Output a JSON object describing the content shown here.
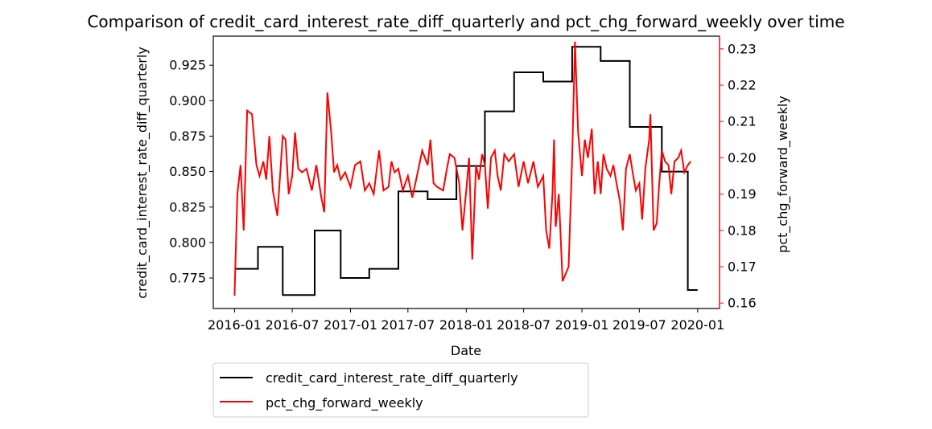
{
  "chart_data": {
    "type": "line",
    "title": "Comparison of credit_card_interest_rate_diff_quarterly and pct_chg_forward_weekly over time",
    "xlabel": "Date",
    "ylabel_left": "credit_card_interest_rate_diff_quarterly",
    "ylabel_right": "pct_chg_forward_weekly",
    "x_ticks": [
      "2016-01",
      "2016-07",
      "2017-01",
      "2017-07",
      "2018-01",
      "2018-07",
      "2019-01",
      "2019-07",
      "2020-01"
    ],
    "y_left_ticks": [
      0.775,
      0.8,
      0.825,
      0.85,
      0.875,
      0.9,
      0.925
    ],
    "y_right_ticks": [
      0.16,
      0.17,
      0.18,
      0.19,
      0.2,
      0.21,
      0.22,
      0.23
    ],
    "y_left_range": [
      0.7535,
      0.9455
    ],
    "y_right_range": [
      0.1585,
      0.2335
    ],
    "x_range": [
      "2015-10-26",
      "2020-03-10"
    ],
    "legend_position": "below",
    "grid": false,
    "colors": {
      "left_series": "#000000",
      "right_series": "#ff0000"
    },
    "series": [
      {
        "name": "credit_card_interest_rate_diff_quarterly",
        "axis": "left",
        "step": true,
        "points": [
          [
            "2016-01-01",
            0.7815
          ],
          [
            "2016-03-15",
            0.797
          ],
          [
            "2016-06-01",
            0.763
          ],
          [
            "2016-09-10",
            0.8085
          ],
          [
            "2016-12-01",
            0.775
          ],
          [
            "2017-03-01",
            0.7815
          ],
          [
            "2017-06-01",
            0.836
          ],
          [
            "2017-09-01",
            0.8305
          ],
          [
            "2017-12-01",
            0.854
          ],
          [
            "2018-03-01",
            0.8925
          ],
          [
            "2018-06-01",
            0.92
          ],
          [
            "2018-09-01",
            0.9135
          ],
          [
            "2018-12-01",
            0.938
          ],
          [
            "2019-03-01",
            0.928
          ],
          [
            "2019-06-01",
            0.8815
          ],
          [
            "2019-09-10",
            0.85
          ],
          [
            "2019-12-01",
            0.7665
          ],
          [
            "2020-01-01",
            0.7665
          ]
        ]
      },
      {
        "name": "pct_chg_forward_weekly",
        "axis": "right",
        "step": false,
        "points": [
          [
            "2016-01-01",
            0.162
          ],
          [
            "2016-01-10",
            0.19
          ],
          [
            "2016-01-20",
            0.198
          ],
          [
            "2016-01-30",
            0.18
          ],
          [
            "2016-02-10",
            0.213
          ],
          [
            "2016-02-25",
            0.212
          ],
          [
            "2016-03-10",
            0.198
          ],
          [
            "2016-03-20",
            0.195
          ],
          [
            "2016-04-01",
            0.199
          ],
          [
            "2016-04-10",
            0.194
          ],
          [
            "2016-04-20",
            0.206
          ],
          [
            "2016-05-01",
            0.191
          ],
          [
            "2016-05-15",
            0.184
          ],
          [
            "2016-06-01",
            0.206
          ],
          [
            "2016-06-10",
            0.205
          ],
          [
            "2016-06-20",
            0.19
          ],
          [
            "2016-07-01",
            0.195
          ],
          [
            "2016-07-10",
            0.207
          ],
          [
            "2016-07-20",
            0.197
          ],
          [
            "2016-08-01",
            0.196
          ],
          [
            "2016-08-15",
            0.197
          ],
          [
            "2016-09-01",
            0.191
          ],
          [
            "2016-09-15",
            0.198
          ],
          [
            "2016-10-01",
            0.189
          ],
          [
            "2016-10-10",
            0.185
          ],
          [
            "2016-10-20",
            0.218
          ],
          [
            "2016-11-01",
            0.207
          ],
          [
            "2016-11-10",
            0.196
          ],
          [
            "2016-11-20",
            0.198
          ],
          [
            "2016-12-01",
            0.194
          ],
          [
            "2016-12-15",
            0.196
          ],
          [
            "2017-01-01",
            0.192
          ],
          [
            "2017-01-15",
            0.198
          ],
          [
            "2017-02-01",
            0.199
          ],
          [
            "2017-02-15",
            0.191
          ],
          [
            "2017-03-01",
            0.193
          ],
          [
            "2017-03-15",
            0.19
          ],
          [
            "2017-04-01",
            0.202
          ],
          [
            "2017-04-15",
            0.191
          ],
          [
            "2017-05-01",
            0.192
          ],
          [
            "2017-05-10",
            0.199
          ],
          [
            "2017-05-20",
            0.196
          ],
          [
            "2017-06-01",
            0.197
          ],
          [
            "2017-06-15",
            0.191
          ],
          [
            "2017-07-01",
            0.195
          ],
          [
            "2017-07-15",
            0.189
          ],
          [
            "2017-08-01",
            0.196
          ],
          [
            "2017-08-15",
            0.202
          ],
          [
            "2017-09-01",
            0.198
          ],
          [
            "2017-09-10",
            0.205
          ],
          [
            "2017-09-20",
            0.193
          ],
          [
            "2017-10-01",
            0.192
          ],
          [
            "2017-10-20",
            0.191
          ],
          [
            "2017-11-01",
            0.197
          ],
          [
            "2017-11-10",
            0.201
          ],
          [
            "2017-11-25",
            0.2
          ],
          [
            "2017-12-10",
            0.193
          ],
          [
            "2017-12-20",
            0.18
          ],
          [
            "2018-01-01",
            0.191
          ],
          [
            "2018-01-10",
            0.2
          ],
          [
            "2018-01-20",
            0.172
          ],
          [
            "2018-02-01",
            0.198
          ],
          [
            "2018-02-10",
            0.194
          ],
          [
            "2018-02-20",
            0.201
          ],
          [
            "2018-03-01",
            0.198
          ],
          [
            "2018-03-10",
            0.186
          ],
          [
            "2018-03-20",
            0.2
          ],
          [
            "2018-04-01",
            0.202
          ],
          [
            "2018-04-10",
            0.195
          ],
          [
            "2018-04-20",
            0.191
          ],
          [
            "2018-05-01",
            0.201
          ],
          [
            "2018-05-15",
            0.199
          ],
          [
            "2018-06-01",
            0.201
          ],
          [
            "2018-06-15",
            0.192
          ],
          [
            "2018-07-01",
            0.199
          ],
          [
            "2018-07-15",
            0.193
          ],
          [
            "2018-08-01",
            0.199
          ],
          [
            "2018-08-15",
            0.192
          ],
          [
            "2018-09-01",
            0.195
          ],
          [
            "2018-09-10",
            0.18
          ],
          [
            "2018-09-20",
            0.175
          ],
          [
            "2018-09-30",
            0.19
          ],
          [
            "2018-10-05",
            0.205
          ],
          [
            "2018-10-10",
            0.181
          ],
          [
            "2018-10-20",
            0.19
          ],
          [
            "2018-11-01",
            0.166
          ],
          [
            "2018-11-20",
            0.17
          ],
          [
            "2018-12-01",
            0.2
          ],
          [
            "2018-12-10",
            0.232
          ],
          [
            "2018-12-20",
            0.207
          ],
          [
            "2019-01-01",
            0.195
          ],
          [
            "2019-01-10",
            0.205
          ],
          [
            "2019-01-20",
            0.2
          ],
          [
            "2019-02-01",
            0.208
          ],
          [
            "2019-02-10",
            0.19
          ],
          [
            "2019-02-20",
            0.199
          ],
          [
            "2019-03-01",
            0.19
          ],
          [
            "2019-03-10",
            0.201
          ],
          [
            "2019-03-20",
            0.197
          ],
          [
            "2019-04-01",
            0.195
          ],
          [
            "2019-04-10",
            0.198
          ],
          [
            "2019-04-20",
            0.193
          ],
          [
            "2019-05-01",
            0.188
          ],
          [
            "2019-05-10",
            0.18
          ],
          [
            "2019-05-20",
            0.197
          ],
          [
            "2019-06-01",
            0.201
          ],
          [
            "2019-06-10",
            0.196
          ],
          [
            "2019-06-20",
            0.191
          ],
          [
            "2019-07-01",
            0.193
          ],
          [
            "2019-07-10",
            0.183
          ],
          [
            "2019-07-20",
            0.197
          ],
          [
            "2019-08-01",
            0.205
          ],
          [
            "2019-08-05",
            0.212
          ],
          [
            "2019-08-15",
            0.18
          ],
          [
            "2019-08-25",
            0.182
          ],
          [
            "2019-09-01",
            0.192
          ],
          [
            "2019-09-10",
            0.202
          ],
          [
            "2019-09-20",
            0.199
          ],
          [
            "2019-10-01",
            0.198
          ],
          [
            "2019-10-10",
            0.19
          ],
          [
            "2019-10-20",
            0.199
          ],
          [
            "2019-11-01",
            0.2
          ],
          [
            "2019-11-10",
            0.202
          ],
          [
            "2019-11-20",
            0.196
          ],
          [
            "2019-12-01",
            0.198
          ],
          [
            "2019-12-10",
            0.199
          ]
        ]
      }
    ]
  }
}
